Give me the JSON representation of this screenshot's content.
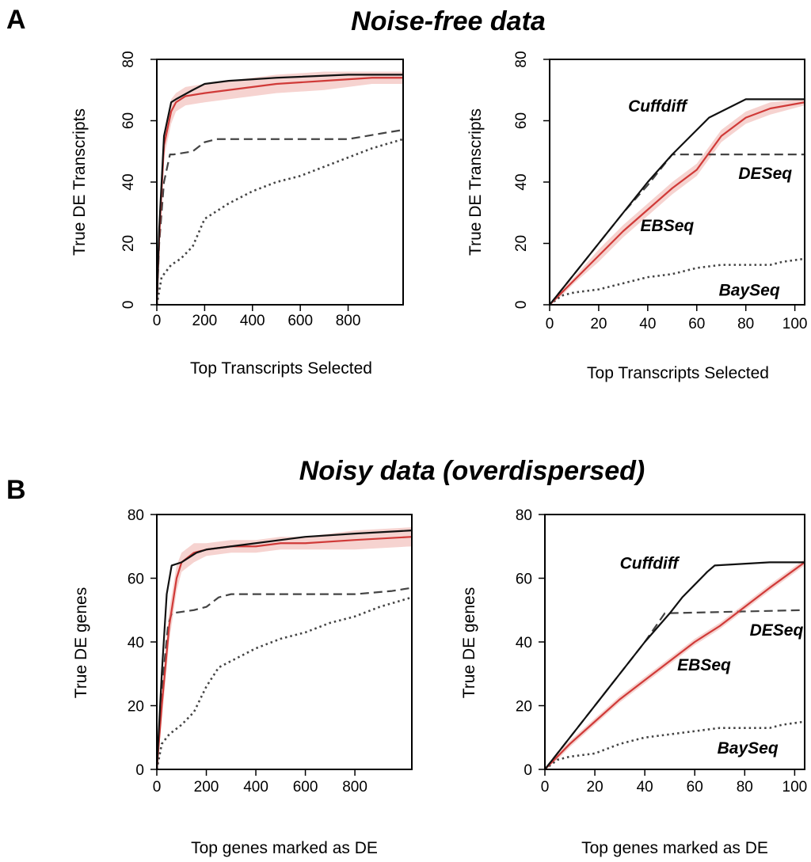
{
  "figure": {
    "panel_a_letter": "A",
    "panel_b_letter": "B",
    "panel_a_title": "Noise-free data",
    "panel_b_title": "Noisy data (overdispersed)"
  },
  "colors": {
    "black": "#111111",
    "red": "#d03a38",
    "band": "#f6d3d0",
    "gray": "#444444"
  },
  "chart_data": [
    {
      "id": "a-left",
      "type": "line",
      "section": "Noise-free data",
      "xlabel": "Top Transcripts Selected",
      "ylabel": "True DE Transcripts",
      "xlim": [
        0,
        1030
      ],
      "ylim": [
        0,
        80
      ],
      "xticks": [
        0,
        200,
        400,
        600,
        800
      ],
      "xtick_labels": [
        "0",
        "200",
        "400",
        "600",
        "800"
      ],
      "yticks": [
        0,
        20,
        40,
        60,
        80
      ],
      "ytick_labels": [
        "0",
        "20",
        "40",
        "60",
        "80"
      ],
      "ytick_rotated": true,
      "series": [
        {
          "name": "Cuffdiff",
          "style": "solid",
          "color": "black",
          "x": [
            0,
            10,
            30,
            60,
            80,
            150,
            200,
            300,
            500,
            800,
            1030
          ],
          "y": [
            0,
            25,
            55,
            66,
            67,
            70,
            72,
            73,
            74,
            75,
            75
          ]
        },
        {
          "name": "EBSeq",
          "style": "solid",
          "color": "red",
          "band": [
            3,
            4,
            4,
            4,
            3,
            3,
            3,
            3,
            3,
            3,
            2,
            2
          ],
          "x": [
            0,
            10,
            30,
            60,
            80,
            120,
            200,
            300,
            500,
            700,
            900,
            1030
          ],
          "y": [
            0,
            22,
            52,
            63,
            66,
            68,
            69,
            70,
            72,
            73,
            74,
            74
          ]
        },
        {
          "name": "DESeq",
          "style": "dashed",
          "color": "black",
          "x": [
            0,
            10,
            30,
            55,
            70,
            150,
            200,
            250,
            800,
            950,
            1030
          ],
          "y": [
            0,
            20,
            40,
            49,
            49,
            50,
            53,
            54,
            54,
            56,
            57
          ]
        },
        {
          "name": "BaySeq",
          "style": "dotted",
          "color": "black",
          "x": [
            0,
            20,
            60,
            100,
            150,
            200,
            300,
            400,
            500,
            600,
            700,
            800,
            900,
            1030
          ],
          "y": [
            0,
            9,
            13,
            15,
            19,
            28,
            33,
            37,
            40,
            42,
            45,
            48,
            51,
            54
          ]
        }
      ],
      "annotations": []
    },
    {
      "id": "a-right",
      "type": "line",
      "section": "Noise-free data",
      "xlabel": "Top Transcripts Selected",
      "ylabel": "True DE Transcripts",
      "xlim": [
        0,
        104
      ],
      "ylim": [
        0,
        80
      ],
      "xticks": [
        0,
        20,
        40,
        60,
        80,
        100
      ],
      "xtick_labels": [
        "0",
        "20",
        "40",
        "60",
        "80",
        "100"
      ],
      "yticks": [
        0,
        20,
        40,
        60,
        80
      ],
      "ytick_labels": [
        "0",
        "20",
        "40",
        "60",
        "80"
      ],
      "ytick_rotated": true,
      "series": [
        {
          "name": "Cuffdiff",
          "style": "solid",
          "color": "black",
          "x": [
            0,
            5,
            10,
            20,
            30,
            40,
            50,
            55,
            60,
            65,
            70,
            75,
            80,
            104
          ],
          "y": [
            0,
            5,
            10,
            20,
            30,
            40,
            49,
            53,
            57,
            61,
            63,
            65,
            67,
            67
          ]
        },
        {
          "name": "EBSeq",
          "style": "solid",
          "color": "red",
          "band": [
            0,
            1,
            1,
            2,
            2,
            2,
            2,
            2,
            2,
            2,
            2,
            1
          ],
          "x": [
            0,
            5,
            10,
            20,
            30,
            40,
            50,
            60,
            70,
            80,
            90,
            104
          ],
          "y": [
            0,
            4,
            8,
            16,
            24,
            31,
            38,
            44,
            55,
            61,
            64,
            66
          ]
        },
        {
          "name": "DESeq",
          "style": "dashed",
          "color": "black",
          "x": [
            0,
            10,
            20,
            30,
            40,
            50,
            104
          ],
          "y": [
            0,
            10,
            20,
            30,
            39,
            49,
            49
          ]
        },
        {
          "name": "BaySeq",
          "style": "dotted",
          "color": "black",
          "x": [
            0,
            5,
            10,
            20,
            30,
            40,
            50,
            60,
            70,
            80,
            90,
            95,
            104
          ],
          "y": [
            0,
            3,
            4,
            5,
            7,
            9,
            10,
            12,
            13,
            13,
            13,
            14,
            15
          ]
        }
      ],
      "annotations": [
        {
          "text": "Cuffdiff",
          "x": 32,
          "y": 63
        },
        {
          "text": "DESeq",
          "x": 77,
          "y": 41
        },
        {
          "text": "EBSeq",
          "x": 37,
          "y": 24
        },
        {
          "text": "BaySeq",
          "x": 69,
          "y": 3
        }
      ]
    },
    {
      "id": "b-left",
      "type": "line",
      "section": "Noisy data (overdispersed)",
      "xlabel": "Top genes marked as DE",
      "ylabel": "True DE genes",
      "xlim": [
        0,
        1030
      ],
      "ylim": [
        0,
        80
      ],
      "xticks": [
        0,
        200,
        400,
        600,
        800
      ],
      "xtick_labels": [
        "0",
        "200",
        "400",
        "600",
        "800"
      ],
      "yticks": [
        0,
        20,
        40,
        60,
        80
      ],
      "ytick_labels": [
        "0",
        "20",
        "40",
        "60",
        "80"
      ],
      "ytick_rotated": false,
      "series": [
        {
          "name": "Cuffdiff",
          "style": "solid",
          "color": "black",
          "x": [
            0,
            20,
            40,
            60,
            100,
            160,
            200,
            300,
            400,
            500,
            600,
            800,
            1030
          ],
          "y": [
            0,
            30,
            55,
            64,
            65,
            68,
            69,
            70,
            71,
            72,
            73,
            74,
            75
          ]
        },
        {
          "name": "EBSeq",
          "style": "solid",
          "color": "red",
          "band": [
            4,
            5,
            5,
            4,
            3,
            3,
            2,
            2,
            2,
            2,
            2,
            3,
            3
          ],
          "x": [
            0,
            20,
            50,
            80,
            100,
            150,
            200,
            300,
            400,
            500,
            600,
            800,
            1030
          ],
          "y": [
            0,
            20,
            45,
            60,
            65,
            68,
            69,
            70,
            70,
            71,
            71,
            72,
            73
          ]
        },
        {
          "name": "DESeq",
          "style": "dashed",
          "color": "black",
          "x": [
            0,
            20,
            45,
            60,
            150,
            200,
            250,
            300,
            800,
            950,
            1030
          ],
          "y": [
            0,
            25,
            45,
            49,
            50,
            51,
            54,
            55,
            55,
            56,
            57
          ]
        },
        {
          "name": "BaySeq",
          "style": "dotted",
          "color": "black",
          "x": [
            0,
            20,
            50,
            100,
            150,
            200,
            250,
            300,
            400,
            500,
            600,
            700,
            800,
            900,
            1030
          ],
          "y": [
            0,
            8,
            11,
            14,
            18,
            26,
            32,
            34,
            38,
            41,
            43,
            46,
            48,
            51,
            54
          ]
        }
      ],
      "annotations": []
    },
    {
      "id": "b-right",
      "type": "line",
      "section": "Noisy data (overdispersed)",
      "xlabel": "Top genes marked as DE",
      "ylabel": "True DE genes",
      "xlim": [
        0,
        104
      ],
      "ylim": [
        0,
        80
      ],
      "xticks": [
        0,
        20,
        40,
        60,
        80,
        100
      ],
      "xtick_labels": [
        "0",
        "20",
        "40",
        "60",
        "80",
        "100"
      ],
      "yticks": [
        0,
        20,
        40,
        60,
        80
      ],
      "ytick_labels": [
        "0",
        "20",
        "40",
        "60",
        "80"
      ],
      "ytick_rotated": false,
      "series": [
        {
          "name": "Cuffdiff",
          "style": "solid",
          "color": "black",
          "x": [
            0,
            10,
            20,
            30,
            40,
            50,
            55,
            60,
            65,
            68,
            90,
            104
          ],
          "y": [
            0,
            10,
            20,
            30,
            40,
            49,
            54,
            58,
            62,
            64,
            65,
            65
          ]
        },
        {
          "name": "EBSeq",
          "style": "solid",
          "color": "red",
          "band": [
            0,
            1,
            1,
            1,
            1,
            1,
            1,
            1,
            1,
            1,
            1,
            1
          ],
          "x": [
            0,
            5,
            10,
            20,
            30,
            40,
            50,
            60,
            70,
            80,
            90,
            104
          ],
          "y": [
            0,
            4,
            8,
            15,
            22,
            28,
            34,
            40,
            45,
            51,
            57,
            65
          ]
        },
        {
          "name": "DESeq",
          "style": "dashed",
          "color": "black",
          "x": [
            0,
            10,
            20,
            30,
            40,
            48,
            104
          ],
          "y": [
            0,
            10,
            20,
            30,
            40,
            49,
            50
          ]
        },
        {
          "name": "BaySeq",
          "style": "dotted",
          "color": "black",
          "x": [
            0,
            5,
            10,
            20,
            30,
            40,
            50,
            60,
            70,
            80,
            90,
            95,
            104
          ],
          "y": [
            0,
            3,
            4,
            5,
            8,
            10,
            11,
            12,
            13,
            13,
            13,
            14,
            15
          ]
        }
      ],
      "annotations": [
        {
          "text": "Cuffdiff",
          "x": 30,
          "y": 63
        },
        {
          "text": "DESeq",
          "x": 82,
          "y": 42
        },
        {
          "text": "EBSeq",
          "x": 53,
          "y": 31
        },
        {
          "text": "BaySeq",
          "x": 69,
          "y": 5
        }
      ]
    }
  ]
}
